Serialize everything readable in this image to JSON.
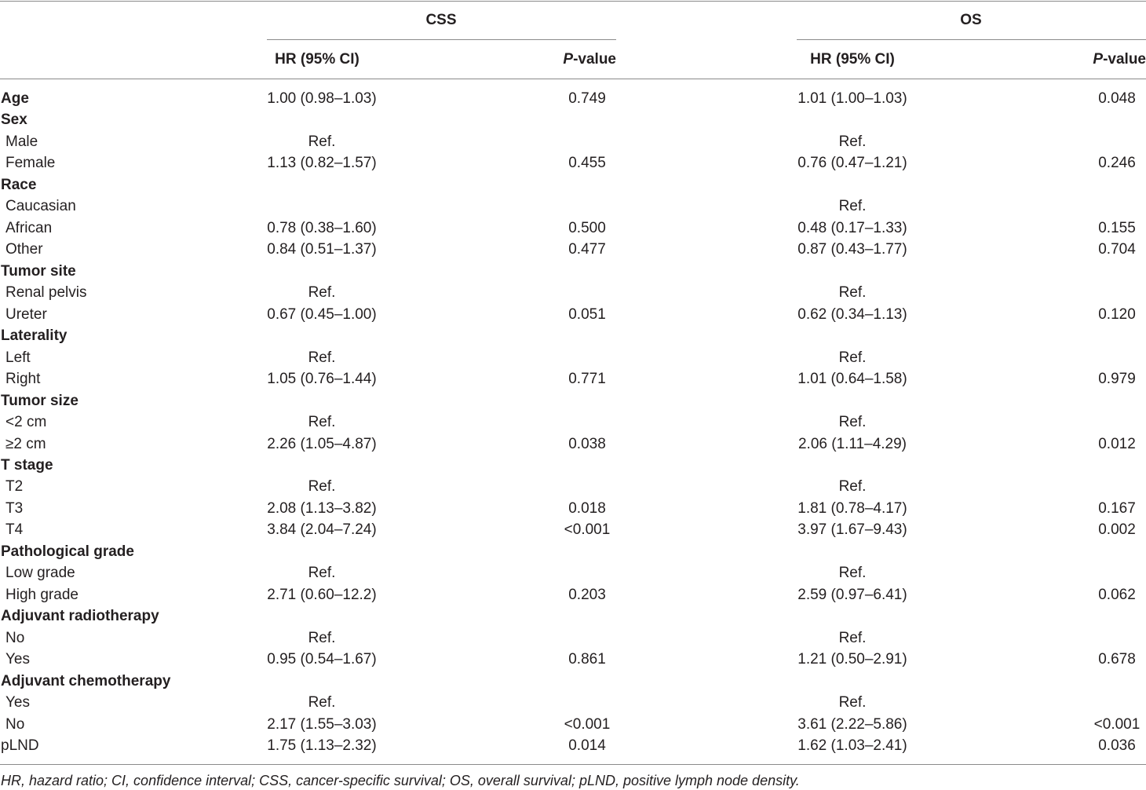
{
  "header": {
    "groups": [
      "CSS",
      "OS"
    ],
    "hr": [
      "HR (95% CI)",
      "HR (95% CI)"
    ],
    "p": [
      [
        "P",
        "-value"
      ],
      [
        "P",
        "-value"
      ]
    ]
  },
  "rows": [
    {
      "label": "Age",
      "bold": true,
      "indent": false,
      "cells": [
        "1.00 (0.98–1.03)",
        "0.749",
        "1.01 (1.00–1.03)",
        "0.048"
      ]
    },
    {
      "label": "Sex",
      "bold": true,
      "indent": false,
      "cells": [
        null,
        null,
        null,
        null
      ]
    },
    {
      "label": "Male",
      "bold": false,
      "indent": true,
      "cells": [
        "Ref.",
        null,
        "Ref.",
        null
      ]
    },
    {
      "label": "Female",
      "bold": false,
      "indent": true,
      "cells": [
        "1.13 (0.82–1.57)",
        "0.455",
        "0.76 (0.47–1.21)",
        "0.246"
      ]
    },
    {
      "label": "Race",
      "bold": true,
      "indent": false,
      "cells": [
        null,
        null,
        null,
        null
      ]
    },
    {
      "label": "Caucasian",
      "bold": false,
      "indent": true,
      "cells": [
        null,
        null,
        "Ref.",
        null
      ]
    },
    {
      "label": "African",
      "bold": false,
      "indent": true,
      "cells": [
        "0.78 (0.38–1.60)",
        "0.500",
        "0.48 (0.17–1.33)",
        "0.155"
      ]
    },
    {
      "label": "Other",
      "bold": false,
      "indent": true,
      "cells": [
        "0.84 (0.51–1.37)",
        "0.477",
        "0.87 (0.43–1.77)",
        "0.704"
      ]
    },
    {
      "label": "Tumor site",
      "bold": true,
      "indent": false,
      "cells": [
        null,
        null,
        null,
        null
      ]
    },
    {
      "label": "Renal pelvis",
      "bold": false,
      "indent": true,
      "cells": [
        "Ref.",
        null,
        "Ref.",
        null
      ]
    },
    {
      "label": "Ureter",
      "bold": false,
      "indent": true,
      "cells": [
        "0.67 (0.45–1.00)",
        "0.051",
        "0.62 (0.34–1.13)",
        "0.120"
      ]
    },
    {
      "label": "Laterality",
      "bold": true,
      "indent": false,
      "cells": [
        null,
        null,
        null,
        null
      ]
    },
    {
      "label": "Left",
      "bold": false,
      "indent": true,
      "cells": [
        "Ref.",
        null,
        "Ref.",
        null
      ]
    },
    {
      "label": "Right",
      "bold": false,
      "indent": true,
      "cells": [
        "1.05 (0.76–1.44)",
        "0.771",
        "1.01 (0.64–1.58)",
        "0.979"
      ]
    },
    {
      "label": "Tumor size",
      "bold": true,
      "indent": false,
      "cells": [
        null,
        null,
        null,
        null
      ]
    },
    {
      "label": "<2 cm",
      "bold": false,
      "indent": true,
      "cells": [
        "Ref.",
        null,
        "Ref.",
        null
      ]
    },
    {
      "label": "≥2 cm",
      "bold": false,
      "indent": true,
      "cells": [
        "2.26 (1.05–4.87)",
        "0.038",
        "2.06 (1.11–4.29)",
        "0.012"
      ]
    },
    {
      "label": "T stage",
      "bold": true,
      "indent": false,
      "cells": [
        null,
        null,
        null,
        null
      ]
    },
    {
      "label": "T2",
      "bold": false,
      "indent": true,
      "cells": [
        "Ref.",
        null,
        "Ref.",
        null
      ]
    },
    {
      "label": "T3",
      "bold": false,
      "indent": true,
      "cells": [
        "2.08 (1.13–3.82)",
        "0.018",
        "1.81 (0.78–4.17)",
        "0.167"
      ]
    },
    {
      "label": "T4",
      "bold": false,
      "indent": true,
      "cells": [
        "3.84 (2.04–7.24)",
        "<0.001",
        "3.97 (1.67–9.43)",
        "0.002"
      ]
    },
    {
      "label": "Pathological grade",
      "bold": true,
      "indent": false,
      "cells": [
        null,
        null,
        null,
        null
      ]
    },
    {
      "label": "Low grade",
      "bold": false,
      "indent": true,
      "cells": [
        "Ref.",
        null,
        "Ref.",
        null
      ]
    },
    {
      "label": "High grade",
      "bold": false,
      "indent": true,
      "cells": [
        "2.71 (0.60–12.2)",
        "0.203",
        "2.59 (0.97–6.41)",
        "0.062"
      ]
    },
    {
      "label": "Adjuvant radiotherapy",
      "bold": true,
      "indent": false,
      "cells": [
        null,
        null,
        null,
        null
      ]
    },
    {
      "label": "No",
      "bold": false,
      "indent": true,
      "cells": [
        "Ref.",
        null,
        "Ref.",
        null
      ]
    },
    {
      "label": "Yes",
      "bold": false,
      "indent": true,
      "cells": [
        "0.95 (0.54–1.67)",
        "0.861",
        "1.21 (0.50–2.91)",
        "0.678"
      ]
    },
    {
      "label": "Adjuvant chemotherapy",
      "bold": true,
      "indent": false,
      "cells": [
        null,
        null,
        null,
        null
      ]
    },
    {
      "label": "Yes",
      "bold": false,
      "indent": true,
      "cells": [
        "Ref.",
        null,
        "Ref.",
        null
      ]
    },
    {
      "label": "No",
      "bold": false,
      "indent": true,
      "cells": [
        "2.17 (1.55–3.03)",
        "<0.001",
        "3.61 (2.22–5.86)",
        "<0.001"
      ]
    },
    {
      "label": "pLND",
      "bold": false,
      "indent": false,
      "cells": [
        "1.75 (1.13–2.32)",
        "0.014",
        "1.62 (1.03–2.41)",
        "0.036"
      ]
    }
  ],
  "footnote": "HR, hazard ratio; CI, confidence interval; CSS, cancer-specific survival; OS, overall survival; pLND, positive lymph node density."
}
